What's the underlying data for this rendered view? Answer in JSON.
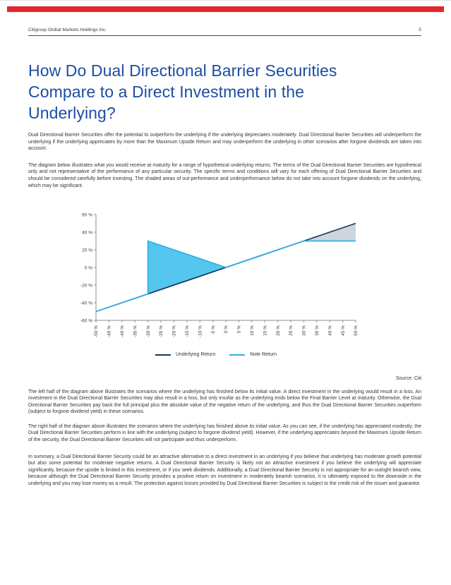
{
  "page": {
    "header_left": "Citigroup Global Markets Holdings Inc.",
    "page_number": "5",
    "title": "How Do Dual Directional Barrier Securities Compare to a Direct Investment in the Underlying?",
    "source_note": "Source: Citi"
  },
  "colors": {
    "brand_red": "#E3262E",
    "title_blue": "#1B4EA3"
  },
  "paragraphs": {
    "intro_1": "Dual Directional Barrier Securities offer the potential to outperform the underlying if the underlying depreciates moderately. Dual Directional Barrier Securities will underperform the underlying if the underlying appreciates by more than the Maximum Upside Return and may underperform the underlying in other  scenarios after forgone dividends are taken into account.",
    "intro_2": "The diagram below illustrates what you would receive at maturity for a range of hypothetical underlying returns. The terms of the Dual Directional Barrier Securities are  hypothetical only and not representative of the performance of any particular security. The specific terms and conditions will vary for each offering of  Dual Directional Barrier Securities and should be considered carefully before investing. The shaded areas of out-performance and underperformance below do not  take into account forgone dividends on the underlying, which may be significant.",
    "left_half": "The left half of the diagram above illustrates the scenarios where the underlying has finished below its initial value. A direct investment in the underlying would result in a loss. An investment in the Dual Directional Barrier Securities may also result in a loss, but only insofar as the underlying ends below the Final Barrier Level at maturity. Otherwise, the Dual Directional Barrier Securities pay back the full principal plus the absolute value of the negative return of the underlying, and thus the Dual Directional Barrier Securities outperform (subject to forgone dividend yield) in these scenarios.",
    "right_half": "The right half of the diagram above illustrates the scenarios where the underlying has finished above its initial value. As you can see, if the underlying has appreciated modestly, the Dual Directional Barrier Securities perform in line with the underlying (subject to forgone dividend yield). However, if the underlying appreciates beyond the Maximum Upside Return of the security, the Dual Directional Barrier Securities will not participate and thus underperform.",
    "summary": "In summary, a Dual Directional Barrier Security could be an attractive alternative to a direct investment in an underlying if you believe that underlying has moderate growth potential but also some potential for moderate negative returns. A Dual Directional Barrier Security is likely not an attractive investment if you believe  the underlying will appreciate significantly, because the upside is limited in this investment, or if you seek dividends. Additionally, a Dual Directional Barrier Security is not appropriate for an outright bearish view, because although the Dual Directional Barrier Security provides a positive return on investment in moderately bearish scenarios, it is ultimately exposed to the downside in the underlying and you may lose money as a result. The protection against losses provided by Dual Directional Barrier Securities is subject to the credit risk of the issuer and guarantor."
  },
  "chart_data": {
    "type": "line",
    "title": "",
    "xlabel": "",
    "ylabel": "",
    "xlim": [
      -50,
      50
    ],
    "ylim": [
      -60,
      60
    ],
    "grid": false,
    "legend_position": "bottom",
    "x_tick_values": [
      -50,
      -45,
      -40,
      -35,
      -30,
      -25,
      -20,
      -15,
      -10,
      -5,
      0,
      5,
      10,
      15,
      20,
      25,
      30,
      35,
      40,
      45,
      50
    ],
    "x_tick_labels": [
      "-50 %",
      "-45 %",
      "-40 %",
      "-35 %",
      "-30 %",
      "-25 %",
      "-20 %",
      "-15 %",
      "-10 %",
      "-5 %",
      "0 %",
      "5 %",
      "10 %",
      "15 %",
      "20 %",
      "25 %",
      "30 %",
      "35 %",
      "40 %",
      "45 %",
      "50 %"
    ],
    "y_tick_values": [
      60,
      40,
      20,
      0,
      -20,
      -40,
      -60
    ],
    "y_tick_labels": [
      "60 %",
      "40 %",
      "20 %",
      "0 %",
      "-20 %",
      "-40 %",
      "-60 %"
    ],
    "series": [
      {
        "name": "Underlying Return",
        "color": "#17375D",
        "points": [
          [
            -50,
            -50
          ],
          [
            50,
            50
          ]
        ]
      },
      {
        "name": "Note Return",
        "color": "#29B2E6",
        "points": [
          [
            -50,
            -50
          ],
          [
            -30,
            -30
          ],
          [
            -30,
            30
          ],
          [
            0,
            0
          ],
          [
            30,
            30
          ],
          [
            50,
            30
          ]
        ]
      }
    ],
    "regions": [
      {
        "name": "outperformance",
        "color": "#55C6ED",
        "points": [
          [
            -30,
            -30
          ],
          [
            -30,
            30
          ],
          [
            0,
            0
          ]
        ]
      },
      {
        "name": "underperformance",
        "color": "#CDD5DE",
        "points": [
          [
            30,
            30
          ],
          [
            50,
            50
          ],
          [
            50,
            30
          ]
        ]
      }
    ]
  }
}
